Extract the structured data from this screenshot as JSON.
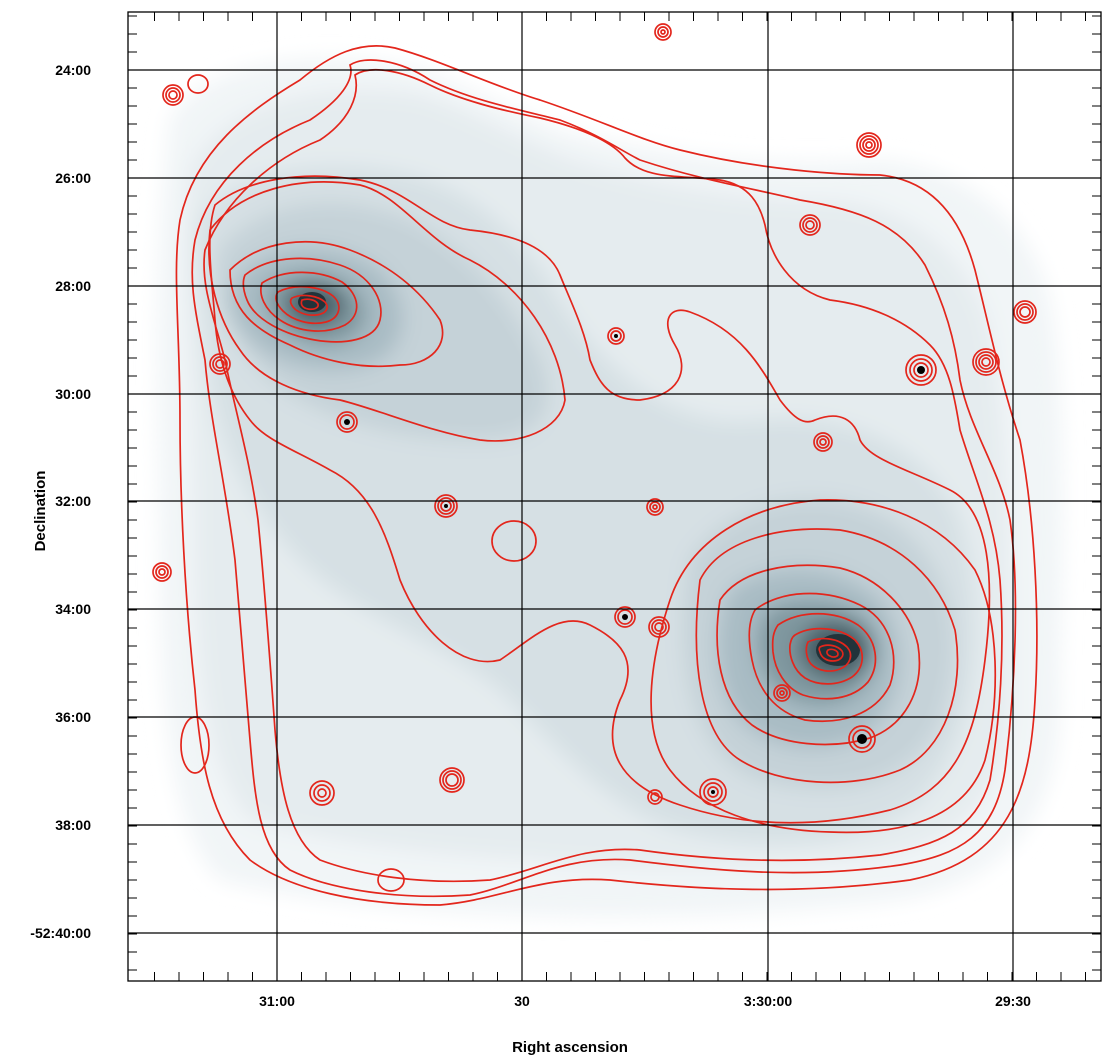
{
  "figure": {
    "xlabel": "Right ascension",
    "ylabel": "Declination",
    "colors": {
      "contour": "#e3261c",
      "grid": "#000000",
      "background": "#ffffff"
    },
    "ra_ticks": [
      {
        "label": "31:00",
        "pos": 0
      },
      {
        "label": "30",
        "pos": 1
      },
      {
        "label": "3:30:00",
        "pos": 2
      },
      {
        "label": "29:30",
        "pos": 3
      }
    ],
    "dec_ticks": [
      {
        "label": "24:00",
        "pos": 0
      },
      {
        "label": "26:00",
        "pos": 1
      },
      {
        "label": "28:00",
        "pos": 2
      },
      {
        "label": "30:00",
        "pos": 3
      },
      {
        "label": "32:00",
        "pos": 4
      },
      {
        "label": "34:00",
        "pos": 5
      },
      {
        "label": "36:00",
        "pos": 6
      },
      {
        "label": "38:00",
        "pos": 7
      },
      {
        "label": "-52:40:00",
        "pos": 8
      }
    ]
  }
}
